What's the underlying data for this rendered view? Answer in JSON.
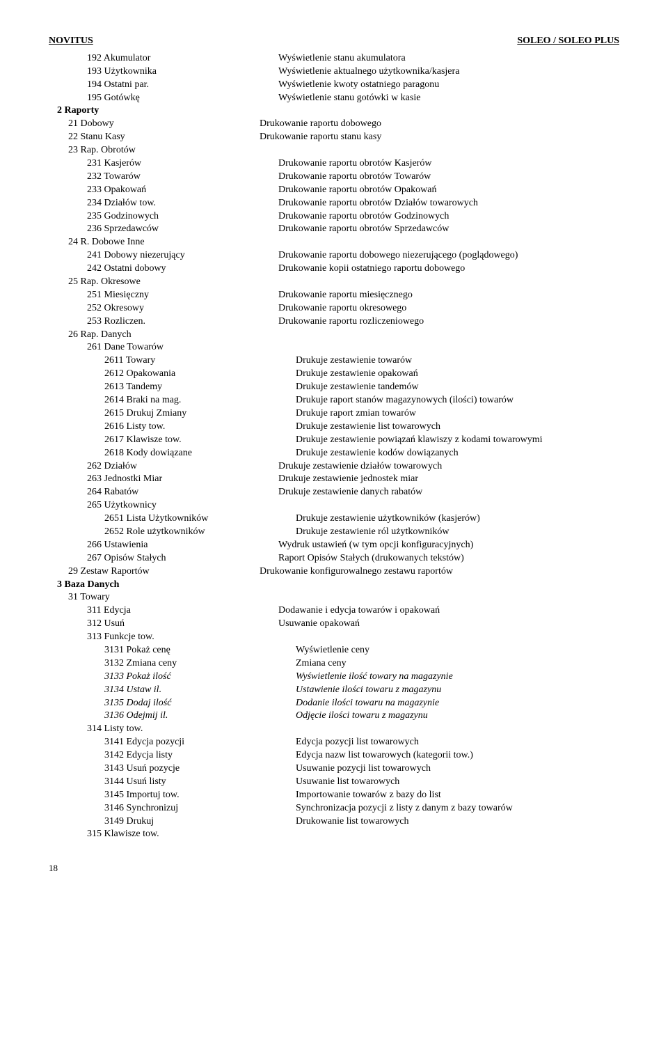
{
  "header": {
    "left": "NOVITUS",
    "right": "SOLEO / SOLEO PLUS"
  },
  "lines": [
    {
      "indent": 2,
      "menu": "192 Akumulator",
      "desc": "Wyświetlenie stanu akumulatora"
    },
    {
      "indent": 2,
      "menu": "193 Użytkownika",
      "desc": "Wyświetlenie aktualnego użytkownika/kasjera"
    },
    {
      "indent": 2,
      "menu": "194 Ostatni par.",
      "desc": "Wyświetlenie kwoty ostatniego paragonu"
    },
    {
      "indent": 2,
      "menu": "195 Gotówkę",
      "desc": "Wyświetlenie stanu gotówki w kasie"
    },
    {
      "indent": 0,
      "menu": "2 Raporty",
      "desc": "",
      "bold": true
    },
    {
      "indent": 1,
      "menu": "21 Dobowy",
      "desc": "Drukowanie raportu dobowego"
    },
    {
      "indent": 1,
      "menu": "22 Stanu Kasy",
      "desc": "Drukowanie raportu stanu kasy"
    },
    {
      "indent": 1,
      "menu": "23 Rap. Obrotów",
      "desc": ""
    },
    {
      "indent": 2,
      "menu": "231 Kasjerów",
      "desc": "Drukowanie raportu obrotów Kasjerów"
    },
    {
      "indent": 2,
      "menu": "232 Towarów",
      "desc": "Drukowanie raportu obrotów Towarów"
    },
    {
      "indent": 2,
      "menu": "233 Opakowań",
      "desc": "Drukowanie raportu obrotów Opakowań"
    },
    {
      "indent": 2,
      "menu": "234 Działów tow.",
      "desc": "Drukowanie raportu obrotów Działów towarowych"
    },
    {
      "indent": 2,
      "menu": "235 Godzinowych",
      "desc": "Drukowanie raportu obrotów Godzinowych"
    },
    {
      "indent": 2,
      "menu": "236 Sprzedawców",
      "desc": "Drukowanie raportu obrotów Sprzedawców"
    },
    {
      "indent": 1,
      "menu": "24 R. Dobowe Inne",
      "desc": ""
    },
    {
      "indent": 2,
      "menu": "241 Dobowy niezerujący",
      "desc": "Drukowanie raportu dobowego niezerującego (poglądowego)"
    },
    {
      "indent": 2,
      "menu": "242 Ostatni dobowy",
      "desc": "Drukowanie kopii ostatniego raportu dobowego"
    },
    {
      "indent": 1,
      "menu": "25 Rap. Okresowe",
      "desc": ""
    },
    {
      "indent": 2,
      "menu": "251 Miesięczny",
      "desc": "Drukowanie raportu miesięcznego"
    },
    {
      "indent": 2,
      "menu": "252 Okresowy",
      "desc": "Drukowanie raportu okresowego"
    },
    {
      "indent": 2,
      "menu": "253 Rozliczen.",
      "desc": "Drukowanie raportu rozliczeniowego"
    },
    {
      "indent": 1,
      "menu": "26 Rap. Danych",
      "desc": ""
    },
    {
      "indent": 2,
      "menu": "261 Dane Towarów",
      "desc": ""
    },
    {
      "indent": 3,
      "menu": "2611 Towary",
      "desc": "Drukuje zestawienie towarów"
    },
    {
      "indent": 3,
      "menu": "2612 Opakowania",
      "desc": "Drukuje zestawienie opakowań"
    },
    {
      "indent": 3,
      "menu": "2613 Tandemy",
      "desc": "Drukuje zestawienie tandemów"
    },
    {
      "indent": 3,
      "menu": "2614 Braki na mag.",
      "desc": "Drukuje raport stanów magazynowych (ilości) towarów"
    },
    {
      "indent": 3,
      "menu": "2615 Drukuj Zmiany",
      "desc": "Drukuje raport zmian towarów"
    },
    {
      "indent": 3,
      "menu": "2616 Listy tow.",
      "desc": "Drukuje zestawienie list towarowych"
    },
    {
      "indent": 3,
      "menu": "2617 Klawisze tow.",
      "desc": "Drukuje zestawienie powiązań klawiszy z kodami towarowymi"
    },
    {
      "indent": 3,
      "menu": "2618 Kody dowiązane",
      "desc": "Drukuje zestawienie kodów dowiązanych"
    },
    {
      "indent": 2,
      "menu": "262 Działów",
      "desc": "Drukuje zestawienie działów towarowych"
    },
    {
      "indent": 2,
      "menu": "263 Jednostki Miar",
      "desc": "Drukuje zestawienie jednostek miar"
    },
    {
      "indent": 2,
      "menu": "264 Rabatów",
      "desc": "Drukuje zestawienie danych rabatów"
    },
    {
      "indent": 2,
      "menu": "265 Użytkownicy",
      "desc": ""
    },
    {
      "indent": 3,
      "menu": "2651 Lista Użytkowników",
      "desc": "Drukuje zestawienie użytkowników (kasjerów)"
    },
    {
      "indent": 3,
      "menu": "2652 Role użytkowników",
      "desc": "Drukuje zestawienie ról użytkowników"
    },
    {
      "indent": 2,
      "menu": "266 Ustawienia",
      "desc": "Wydruk ustawień (w tym opcji konfiguracyjnych)"
    },
    {
      "indent": 2,
      "menu": "267 Opisów Stałych",
      "desc": "Raport Opisów Stałych (drukowanych tekstów)"
    },
    {
      "indent": 1,
      "menu": "29 Zestaw Raportów",
      "desc": "Drukowanie konfigurowalnego zestawu raportów"
    },
    {
      "indent": 0,
      "menu": "3 Baza Danych",
      "desc": "",
      "bold": true
    },
    {
      "indent": 1,
      "menu": "31 Towary",
      "desc": ""
    },
    {
      "indent": 2,
      "menu": "311 Edycja",
      "desc": "Dodawanie i edycja towarów i opakowań"
    },
    {
      "indent": 2,
      "menu": "312 Usuń",
      "desc": "Usuwanie opakowań"
    },
    {
      "indent": 2,
      "menu": "313 Funkcje tow.",
      "desc": ""
    },
    {
      "indent": 3,
      "menu": "3131 Pokaż cenę",
      "desc": "Wyświetlenie ceny"
    },
    {
      "indent": 3,
      "menu": "3132 Zmiana ceny",
      "desc": "Zmiana ceny"
    },
    {
      "indent": 3,
      "menu": "3133 Pokaż ilość",
      "desc": "Wyświetlenie ilość towary na magazynie",
      "italic": true
    },
    {
      "indent": 3,
      "menu": "3134 Ustaw il.",
      "desc": "Ustawienie ilości towaru z magazynu",
      "italic": true
    },
    {
      "indent": 3,
      "menu": "3135 Dodaj ilość",
      "desc": "Dodanie ilości towaru na magazynie",
      "italic": true
    },
    {
      "indent": 3,
      "menu": "3136 Odejmij il.",
      "desc": "Odjęcie ilości towaru z magazynu",
      "italic": true
    },
    {
      "indent": 2,
      "menu": "314 Listy tow.",
      "desc": ""
    },
    {
      "indent": 3,
      "menu": "3141 Edycja pozycji",
      "desc": "Edycja pozycji list towarowych"
    },
    {
      "indent": 3,
      "menu": "3142 Edycja listy",
      "desc": "Edycja nazw list towarowych (kategorii tow.)"
    },
    {
      "indent": 3,
      "menu": "3143 Usuń pozycje",
      "desc": "Usuwanie pozycji list towarowych"
    },
    {
      "indent": 3,
      "menu": "3144 Usuń listy",
      "desc": "Usuwanie list towarowych"
    },
    {
      "indent": 3,
      "menu": "3145 Importuj tow.",
      "desc": "Importowanie towarów z bazy do list"
    },
    {
      "indent": 3,
      "menu": "3146 Synchronizuj",
      "desc": "Synchronizacja pozycji z listy z danym z bazy towarów"
    },
    {
      "indent": 3,
      "menu": "3149 Drukuj",
      "desc": "Drukowanie list towarowych"
    },
    {
      "indent": 2,
      "menu": "315 Klawisze tow.",
      "desc": ""
    }
  ],
  "page_number": "18"
}
